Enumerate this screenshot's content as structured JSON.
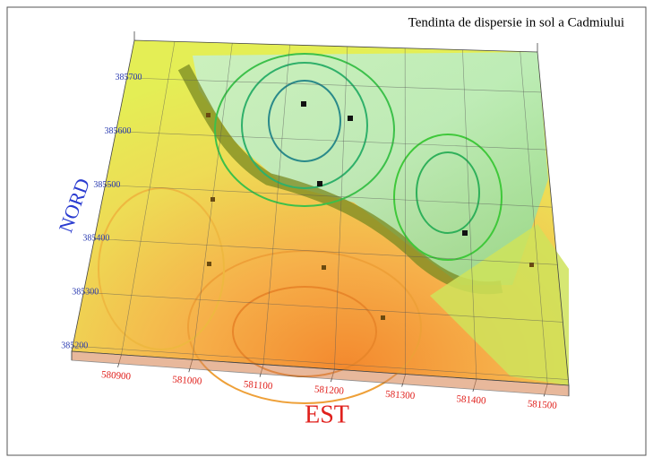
{
  "chart_data": {
    "type": "surface3d",
    "title": "Tendinta de dispersie in sol a Cadmiului",
    "xlabel": "EST",
    "ylabel": "NORD",
    "xlim": [
      580830,
      581530
    ],
    "xticks": [
      580900,
      581000,
      581100,
      581200,
      581300,
      581400,
      581500
    ],
    "ylim": [
      385190,
      385770
    ],
    "yticks": [
      385200,
      385300,
      385400,
      385500,
      385600,
      385700
    ],
    "grid": true
  }
}
